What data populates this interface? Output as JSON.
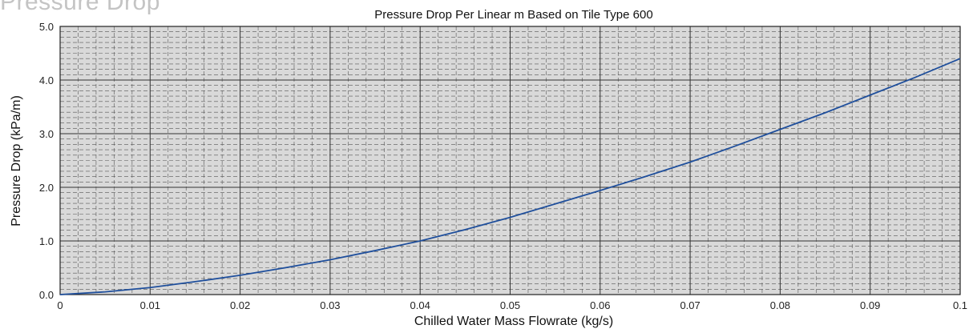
{
  "page": {
    "heading": "Pressure Drop"
  },
  "chart_data": {
    "type": "line",
    "title": "Pressure Drop Per Linear m Based on Tile Type 600",
    "xlabel": "Chilled Water Mass Flowrate (kg/s)",
    "ylabel": "Pressure Drop (kPa/m)",
    "xlim": [
      0,
      0.1
    ],
    "ylim": [
      0,
      5.0
    ],
    "x_ticks": [
      "0",
      "0.01",
      "0.02",
      "0.03",
      "0.04",
      "0.05",
      "0.06",
      "0.07",
      "0.08",
      "0.09",
      "0.1"
    ],
    "y_ticks": [
      "0.0",
      "1.0",
      "2.0",
      "3.0",
      "4.0",
      "5.0"
    ],
    "grid": true,
    "colors": {
      "line": "#1f4f9c",
      "plot_background": "#d9d9d9",
      "grid_major": "#333333",
      "grid_minor": "#555555"
    },
    "series": [
      {
        "x": [
          0,
          0.005,
          0.01,
          0.015,
          0.02,
          0.025,
          0.03,
          0.035,
          0.04,
          0.045,
          0.05,
          0.055,
          0.06,
          0.065,
          0.07,
          0.075,
          0.08,
          0.085,
          0.09,
          0.095,
          0.1
        ],
        "values": [
          0,
          0.05,
          0.13,
          0.24,
          0.36,
          0.5,
          0.65,
          0.82,
          1.0,
          1.21,
          1.44,
          1.69,
          1.94,
          2.2,
          2.47,
          2.77,
          3.08,
          3.39,
          3.72,
          4.05,
          4.4
        ]
      }
    ]
  }
}
